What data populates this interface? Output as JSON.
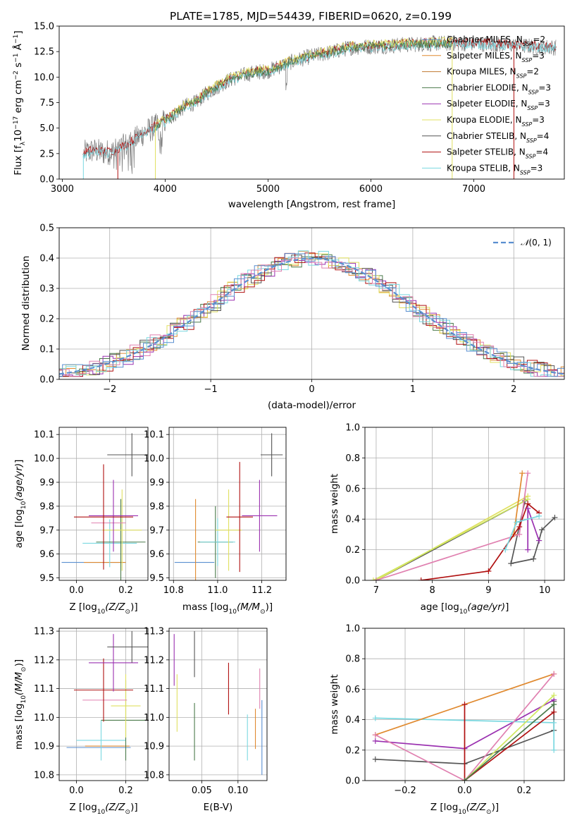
{
  "title": "PLATE=1785, MJD=54439, FIBERID=0620, z=0.199",
  "colors": {
    "chabrier_miles": "#5a8fd0",
    "salpeter_miles": "#e08a30",
    "kroupa_miles": "#c07a30",
    "chabrier_elodie": "#4a7a4a",
    "salpeter_elodie": "#9a30b0",
    "kroupa_elodie": "#e0e060",
    "chabrier_stelib": "#555555",
    "salpeter_stelib": "#b01010",
    "kroupa_stelib": "#7ad8e0",
    "pink": "#e080b0",
    "lime": "#d0e860",
    "gauss": "#5a8fd0",
    "grid": "#b0b0b0"
  },
  "chart_data": [
    {
      "id": "spectrum",
      "type": "line",
      "title": "PLATE=1785, MJD=54439, FIBERID=0620, z=0.199",
      "xlabel": "wavelength [Angstrom, rest frame]",
      "ylabel": "Flux [f",
      "xlim": [
        2970,
        7880
      ],
      "ylim": [
        0,
        15
      ],
      "xticks": [
        "3000",
        "4000",
        "5000",
        "6000",
        "7000"
      ],
      "yticks": [
        "0.0",
        "2.5",
        "5.0",
        "7.5",
        "10.0",
        "12.5",
        "15.0"
      ],
      "xtick_values": [
        3000,
        4000,
        5000,
        6000,
        7000
      ],
      "ytick_values": [
        0,
        2.5,
        5,
        7.5,
        10,
        12.5,
        15
      ],
      "legend_position": "right",
      "legend": [
        {
          "name": "Chabrier MILES, N",
          "n": "=2"
        },
        {
          "name": "Salpeter MILES, N",
          "n": "=3"
        },
        {
          "name": "Kroupa MILES, N",
          "n": "=2"
        },
        {
          "name": "Chabrier ELODIE, N",
          "n": "=3"
        },
        {
          "name": "Salpeter ELODIE, N",
          "n": "=3"
        },
        {
          "name": "Kroupa ELODIE, N",
          "n": "=3"
        },
        {
          "name": "Chabrier STELIB, N",
          "n": "=4"
        },
        {
          "name": "Salpeter STELIB, N",
          "n": "=4"
        },
        {
          "name": "Kroupa STELIB, N",
          "n": "=3"
        }
      ],
      "continuum": {
        "x": [
          3200,
          3300,
          3400,
          3500,
          3600,
          3700,
          3800,
          3900,
          4000,
          4100,
          4200,
          4300,
          4400,
          4500,
          4600,
          4700,
          4800,
          4900,
          5000,
          5200,
          5400,
          5600,
          5800,
          6000,
          6200,
          6400,
          6600,
          6800,
          7000,
          7200,
          7400,
          7600,
          7800
        ],
        "y": [
          2.5,
          2.8,
          2.6,
          2.7,
          3.2,
          3.8,
          4.6,
          5.1,
          5.7,
          6.4,
          7.2,
          7.5,
          8.4,
          9.0,
          9.6,
          10.0,
          10.3,
          10.5,
          10.6,
          11.4,
          12.0,
          12.4,
          12.9,
          13.0,
          13.1,
          13.2,
          13.3,
          13.3,
          13.3,
          13.2,
          13.1,
          13.0,
          12.9
        ]
      }
    },
    {
      "id": "residuals",
      "type": "line",
      "xlabel": "(data-model)/error",
      "ylabel": "Normed distribution",
      "xlim": [
        -2.5,
        2.5
      ],
      "ylim": [
        0,
        0.5
      ],
      "xticks": [
        "−2",
        "−1",
        "0",
        "1",
        "2"
      ],
      "yticks": [
        "0.0",
        "0.1",
        "0.2",
        "0.3",
        "0.4",
        "0.5"
      ],
      "xtick_values": [
        -2,
        -1,
        0,
        1,
        2
      ],
      "ytick_values": [
        0,
        0.1,
        0.2,
        0.3,
        0.4,
        0.5
      ],
      "legend_position": "top-right",
      "gauss_label": "(0, 1)",
      "gauss_symbol": "𝒩"
    },
    {
      "id": "age_vs_Z",
      "type": "scatter",
      "xlabel": "Z [log",
      "ylabel": "age  [log",
      "xlim": [
        -0.07,
        0.29
      ],
      "ylim": [
        9.49,
        10.13
      ],
      "xticks": [
        "0.0",
        "0.2"
      ],
      "yticks": [
        "9.5",
        "9.6",
        "9.7",
        "9.8",
        "9.9",
        "10.0",
        "10.1"
      ],
      "xtick_values": [
        0,
        0.2
      ],
      "ytick_values": [
        9.5,
        9.6,
        9.7,
        9.8,
        9.9,
        10.0,
        10.1
      ],
      "points": [
        {
          "c": "chabrier_miles",
          "x": 0.07,
          "xe": 0.13,
          "y": 9.565,
          "ye": 0.0
        },
        {
          "c": "salpeter_miles",
          "x": 0.115,
          "xe": 0.085,
          "y": 9.565,
          "ye": 0.0
        },
        {
          "c": "kroupa_stelib",
          "x": 0.135,
          "xe": 0.11,
          "y": 9.645,
          "ye": 0.1
        },
        {
          "c": "chabrier_elodie",
          "x": 0.18,
          "xe": 0.1,
          "y": 9.65,
          "ye": 0.18
        },
        {
          "c": "kroupa_elodie",
          "x": 0.185,
          "xe": 0.08,
          "y": 9.7,
          "ye": 0.17
        },
        {
          "c": "pink",
          "x": 0.13,
          "xe": 0.07,
          "y": 9.73,
          "ye": 0.0
        },
        {
          "c": "salpeter_elodie",
          "x": 0.15,
          "xe": 0.1,
          "y": 9.76,
          "ye": 0.15
        },
        {
          "c": "salpeter_stelib",
          "x": 0.11,
          "xe": 0.12,
          "y": 9.755,
          "ye": 0.22
        },
        {
          "c": "chabrier_stelib",
          "x": 0.225,
          "xe": 0.1,
          "y": 10.015,
          "ye": 0.09
        }
      ]
    },
    {
      "id": "age_vs_mass",
      "type": "scatter",
      "xlabel": "mass [log",
      "ylabel": "",
      "xlim": [
        10.78,
        11.31
      ],
      "ylim": [
        9.49,
        10.13
      ],
      "xticks": [
        "10.8",
        "11.0",
        "11.2"
      ],
      "yticks": [
        "9.5",
        "9.6",
        "9.7",
        "9.8",
        "9.9",
        "10.0",
        "10.1"
      ],
      "xtick_values": [
        10.8,
        11.0,
        11.2
      ],
      "ytick_values": [
        9.5,
        9.6,
        9.7,
        9.8,
        9.9,
        10.0,
        10.1
      ],
      "points": [
        {
          "c": "chabrier_miles",
          "x": 10.895,
          "xe": 0.09,
          "y": 9.565,
          "ye": 0.0
        },
        {
          "c": "salpeter_miles",
          "x": 10.9,
          "xe": 0.0,
          "y": 9.63,
          "ye": 0.2
        },
        {
          "c": "chabrier_elodie",
          "x": 10.99,
          "xe": 0.08,
          "y": 9.65,
          "ye": 0.15
        },
        {
          "c": "kroupa_stelib",
          "x": 11.0,
          "xe": 0.08,
          "y": 9.65,
          "ye": 0.1
        },
        {
          "c": "kroupa_elodie",
          "x": 11.05,
          "xe": 0.06,
          "y": 9.7,
          "ye": 0.17
        },
        {
          "c": "salpeter_stelib",
          "x": 11.1,
          "xe": 0.06,
          "y": 9.755,
          "ye": 0.23
        },
        {
          "c": "salpeter_elodie",
          "x": 11.19,
          "xe": 0.08,
          "y": 9.76,
          "ye": 0.15
        },
        {
          "c": "chabrier_stelib",
          "x": 11.245,
          "xe": 0.05,
          "y": 10.015,
          "ye": 0.09
        }
      ]
    },
    {
      "id": "mass_weight_vs_age",
      "type": "line",
      "xlabel": "age  [log",
      "ylabel": "mass weight",
      "xlim": [
        6.8,
        10.35
      ],
      "ylim": [
        0,
        1
      ],
      "xticks": [
        "7",
        "8",
        "9",
        "10"
      ],
      "yticks": [
        "0.0",
        "0.2",
        "0.4",
        "0.6",
        "0.8",
        "1.0"
      ],
      "xtick_values": [
        7,
        8,
        9,
        10
      ],
      "ytick_values": [
        0,
        0.2,
        0.4,
        0.6,
        0.8,
        1.0
      ],
      "series": [
        {
          "c": "chabrier_stelib",
          "x": [
            7.0,
            9.65,
            9.4,
            9.8,
            9.9,
            9.95,
            10.18
          ],
          "y": [
            0.0,
            0.52,
            0.11,
            0.14,
            0.26,
            0.33,
            0.41
          ]
        },
        {
          "c": "kroupa_elodie",
          "x": [
            7.0,
            9.7
          ],
          "y": [
            0.0,
            0.55
          ]
        },
        {
          "c": "lime",
          "x": [
            6.95,
            9.7
          ],
          "y": [
            0.0,
            0.53
          ]
        },
        {
          "c": "pink",
          "x": [
            7.0,
            9.55,
            9.7
          ],
          "y": [
            0.0,
            0.3,
            0.7
          ]
        },
        {
          "c": "salpeter_miles",
          "x": [
            9.45,
            9.6,
            9.45
          ],
          "y": [
            0.3,
            0.7,
            0.3
          ]
        },
        {
          "c": "salpeter_stelib",
          "x": [
            7.8,
            9.0,
            9.55,
            9.7,
            9.9
          ],
          "y": [
            0.0,
            0.06,
            0.35,
            0.5,
            0.44
          ]
        },
        {
          "c": "salpeter_elodie",
          "x": [
            9.7,
            9.7,
            9.9
          ],
          "y": [
            0.2,
            0.47,
            0.26
          ]
        },
        {
          "c": "kroupa_stelib",
          "x": [
            9.3,
            9.5,
            9.9
          ],
          "y": [
            0.2,
            0.38,
            0.42
          ]
        }
      ]
    },
    {
      "id": "mass_vs_Z",
      "type": "scatter",
      "xlabel": "Z [log",
      "ylabel": "mass [log",
      "xlim": [
        -0.07,
        0.29
      ],
      "ylim": [
        10.78,
        11.31
      ],
      "xticks": [
        "0.0",
        "0.2"
      ],
      "yticks": [
        "10.8",
        "10.9",
        "11.0",
        "11.1",
        "11.2",
        "11.3"
      ],
      "xtick_values": [
        0,
        0.2
      ],
      "ytick_values": [
        10.8,
        10.9,
        11.0,
        11.1,
        11.2,
        11.3
      ],
      "points": [
        {
          "c": "chabrier_miles",
          "x": 0.09,
          "xe": 0.13,
          "y": 10.895,
          "ye": 0.0
        },
        {
          "c": "salpeter_miles",
          "x": 0.125,
          "xe": 0.09,
          "y": 10.9,
          "ye": 0.0
        },
        {
          "c": "kroupa_stelib",
          "x": 0.1,
          "xe": 0.1,
          "y": 10.92,
          "ye": 0.07
        },
        {
          "c": "chabrier_elodie",
          "x": 0.2,
          "xe": 0.1,
          "y": 10.99,
          "ye": 0.14
        },
        {
          "c": "kroupa_elodie",
          "x": 0.2,
          "xe": 0.06,
          "y": 11.04,
          "ye": 0.11
        },
        {
          "c": "pink",
          "x": 0.115,
          "xe": 0.09,
          "y": 11.06,
          "ye": 0.0
        },
        {
          "c": "salpeter_stelib",
          "x": 0.11,
          "xe": 0.12,
          "y": 11.095,
          "ye": 0.11
        },
        {
          "c": "salpeter_elodie",
          "x": 0.15,
          "xe": 0.1,
          "y": 11.19,
          "ye": 0.1
        },
        {
          "c": "chabrier_stelib",
          "x": 0.225,
          "xe": 0.1,
          "y": 11.245,
          "ye": 0.055
        }
      ]
    },
    {
      "id": "mass_vs_ebv",
      "type": "scatter",
      "xlabel": "E(B-V)",
      "ylabel": "",
      "xlim": [
        0.005,
        0.14
      ],
      "ylim": [
        10.78,
        11.31
      ],
      "xticks": [
        "0.05",
        "0.10"
      ],
      "yticks": [
        "10.8",
        "10.9",
        "11.0",
        "11.1",
        "11.2",
        "11.3"
      ],
      "xtick_values": [
        0.05,
        0.1
      ],
      "ytick_values": [
        10.8,
        10.9,
        11.0,
        11.1,
        11.2,
        11.3
      ],
      "points": [
        {
          "c": "salpeter_elodie",
          "x": 0.012,
          "y": 11.2,
          "ye": 0.09
        },
        {
          "c": "kroupa_elodie",
          "x": 0.016,
          "y": 11.05,
          "ye": 0.1
        },
        {
          "c": "chabrier_stelib",
          "x": 0.04,
          "y": 11.22,
          "ye": 0.08
        },
        {
          "c": "chabrier_elodie",
          "x": 0.04,
          "y": 10.95,
          "ye": 0.1
        },
        {
          "c": "salpeter_stelib",
          "x": 0.087,
          "y": 11.1,
          "ye": 0.09
        },
        {
          "c": "kroupa_stelib",
          "x": 0.113,
          "y": 10.93,
          "ye": 0.08
        },
        {
          "c": "salpeter_miles",
          "x": 0.124,
          "y": 10.96,
          "ye": 0.07
        },
        {
          "c": "pink",
          "x": 0.13,
          "y": 11.1,
          "ye": 0.07
        },
        {
          "c": "chabrier_miles",
          "x": 0.133,
          "y": 10.93,
          "ye": 0.13
        }
      ]
    },
    {
      "id": "mass_weight_vs_Z",
      "type": "line",
      "xlabel": "Z [log",
      "ylabel": "mass weight",
      "xlim": [
        -0.335,
        0.335
      ],
      "ylim": [
        0,
        1
      ],
      "xticks": [
        "−0.2",
        "0.0",
        "0.2"
      ],
      "yticks": [
        "0.0",
        "0.2",
        "0.4",
        "0.6",
        "0.8",
        "1.0"
      ],
      "xtick_values": [
        -0.2,
        0,
        0.2
      ],
      "ytick_values": [
        0,
        0.2,
        0.4,
        0.6,
        0.8,
        1.0
      ],
      "series": [
        {
          "c": "chabrier_stelib",
          "x": [
            -0.3,
            0.0,
            0.3,
            0.3
          ],
          "y": [
            0.14,
            0.11,
            0.33,
            0.52
          ]
        },
        {
          "c": "salpeter_elodie",
          "x": [
            -0.3,
            0.0,
            0.3
          ],
          "y": [
            0.26,
            0.21,
            0.53
          ]
        },
        {
          "c": "kroupa_stelib",
          "x": [
            -0.3,
            0.3,
            0.3
          ],
          "y": [
            0.41,
            0.38,
            0.2
          ]
        },
        {
          "c": "salpeter_miles",
          "x": [
            -0.3,
            0.3
          ],
          "y": [
            0.3,
            0.7
          ]
        },
        {
          "c": "pink",
          "x": [
            -0.3,
            0.0,
            0.3
          ],
          "y": [
            0.3,
            0.0,
            0.7
          ]
        },
        {
          "c": "lime",
          "x": [
            0.0,
            0.3
          ],
          "y": [
            0.0,
            0.56
          ]
        },
        {
          "c": "salpeter_stelib",
          "x": [
            0.0,
            0.0,
            0.3
          ],
          "y": [
            0.5,
            0.0,
            0.45
          ]
        },
        {
          "c": "chabrier_elodie",
          "x": [
            0.0,
            0.3
          ],
          "y": [
            0.0,
            0.5
          ]
        }
      ]
    }
  ]
}
